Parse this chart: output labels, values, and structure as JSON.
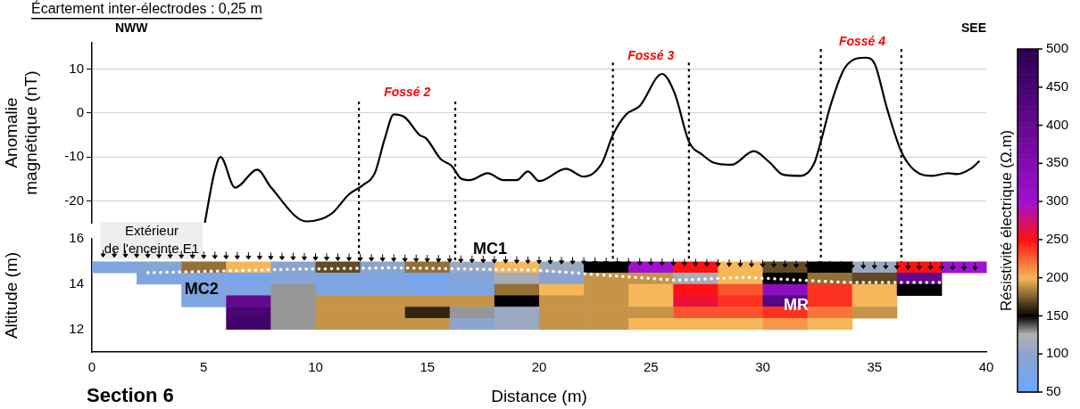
{
  "chart_data": [
    {
      "type": "line",
      "title": "Écartement inter-électrodes : 0,25 m",
      "ylabel": "Anomalie magnétique (nT)",
      "x": [
        5.05,
        5.47,
        5.75,
        6.4,
        7.4,
        8.0,
        9.6,
        10.7,
        11.5,
        12.1,
        12.65,
        13.1,
        13.5,
        14.0,
        14.65,
        14.95,
        15.6,
        16.1,
        16.5,
        16.9,
        17.7,
        18.4,
        19.0,
        19.5,
        20.0,
        21.2,
        22.0,
        22.8,
        23.3,
        23.9,
        24.5,
        25.5,
        26.07,
        26.7,
        27.3,
        27.8,
        28.6,
        29.6,
        30.3,
        30.9,
        31.7,
        32.3,
        32.6,
        33.05,
        33.7,
        34.6,
        35.0,
        35.55,
        36.2,
        36.8,
        37.6,
        38.3,
        38.7,
        39.3,
        39.7
      ],
      "values": [
        -25,
        -13.7,
        -10,
        -17,
        -12.9,
        -16.9,
        -24.7,
        -23,
        -18.5,
        -16.5,
        -13.7,
        -5.8,
        -0.3,
        -1,
        -5,
        -5.8,
        -10.5,
        -12.1,
        -14.9,
        -15.3,
        -13.7,
        -15.3,
        -15.3,
        -13.3,
        -15.5,
        -12.7,
        -14.5,
        -11.5,
        -5,
        -0.3,
        1.6,
        8.9,
        4.4,
        -6.5,
        -9.5,
        -11.3,
        -11.8,
        -8.7,
        -11.2,
        -14,
        -14.3,
        -11.5,
        -6.5,
        2,
        10.5,
        12.6,
        11.3,
        1.2,
        -8.8,
        -13.1,
        -14.3,
        -13.7,
        -13.9,
        -12.7,
        -10.9
      ],
      "color": "#000000",
      "xlim": [
        0,
        40
      ],
      "ylim": [
        -25,
        16
      ],
      "yticks": [
        -20,
        -10,
        0,
        10
      ],
      "tick_labels": "y",
      "grid": "y",
      "marker": "none",
      "line_style": "solid",
      "legend": false,
      "ref_lines": [
        {
          "axis": "x",
          "value": 11.94,
          "color": "#000000",
          "line_style": "dotted"
        },
        {
          "axis": "x",
          "value": 16.25,
          "color": "#000000",
          "line_style": "dotted"
        },
        {
          "axis": "x",
          "value": 23.3,
          "color": "#000000",
          "line_style": "dotted"
        },
        {
          "axis": "x",
          "value": 26.7,
          "color": "#000000",
          "line_style": "dotted"
        },
        {
          "axis": "x",
          "value": 32.6,
          "color": "#000000",
          "line_style": "dotted"
        },
        {
          "axis": "x",
          "value": 36.2,
          "color": "#000000",
          "line_style": "dotted"
        }
      ],
      "annotations": [
        "NWW",
        "SEE",
        "Fossé 2",
        "Fossé 3",
        "Fossé 4"
      ]
    },
    {
      "type": "heatmap",
      "xlabel": "Distance (m)",
      "ylabel": "Altitude (m)",
      "clabel": "Résistivité électrique (Ω.m)",
      "x": [
        1,
        3,
        5,
        7,
        9,
        11,
        13,
        15,
        17,
        19,
        21,
        23,
        25,
        27,
        29,
        31,
        33,
        35,
        37,
        39
      ],
      "y": [
        14.75,
        14.25,
        13.75,
        13.25,
        12.75,
        12.25
      ],
      "cells": [
        [
          80,
          90,
          180,
          200,
          100,
          170,
          100,
          180,
          110,
          200,
          110,
          150,
          300,
          250,
          200,
          170,
          150,
          110,
          250,
          300
        ],
        [
          null,
          80,
          80,
          70,
          90,
          80,
          80,
          70,
          90,
          120,
          100,
          190,
          190,
          120,
          200,
          150,
          180,
          170,
          400,
          null
        ],
        [
          null,
          null,
          80,
          80,
          130,
          80,
          80,
          75,
          80,
          180,
          200,
          190,
          200,
          250,
          230,
          330,
          240,
          200,
          150,
          null
        ],
        [
          null,
          null,
          80,
          400,
          130,
          190,
          190,
          190,
          190,
          150,
          190,
          190,
          200,
          260,
          240,
          420,
          240,
          200,
          null,
          null
        ],
        [
          null,
          null,
          null,
          450,
          130,
          190,
          190,
          160,
          130,
          110,
          190,
          190,
          190,
          230,
          230,
          240,
          220,
          190,
          null,
          null
        ],
        [
          null,
          null,
          null,
          460,
          130,
          190,
          190,
          190,
          100,
          110,
          190,
          190,
          200,
          200,
          200,
          210,
          200,
          null,
          null,
          null
        ]
      ],
      "xlim": [
        0,
        40
      ],
      "xticks": [
        0,
        5,
        10,
        15,
        20,
        25,
        30,
        35,
        40
      ],
      "ylim": [
        11,
        16
      ],
      "yticks": [
        12,
        14,
        16
      ],
      "clim": [
        50,
        500
      ],
      "cticks": [
        50,
        100,
        150,
        200,
        250,
        300,
        350,
        400,
        450,
        500
      ],
      "annotations": [
        "Extérieur de l'enceinte E1",
        "Section 6",
        "MC1",
        "MC2",
        "MR"
      ]
    }
  ]
}
